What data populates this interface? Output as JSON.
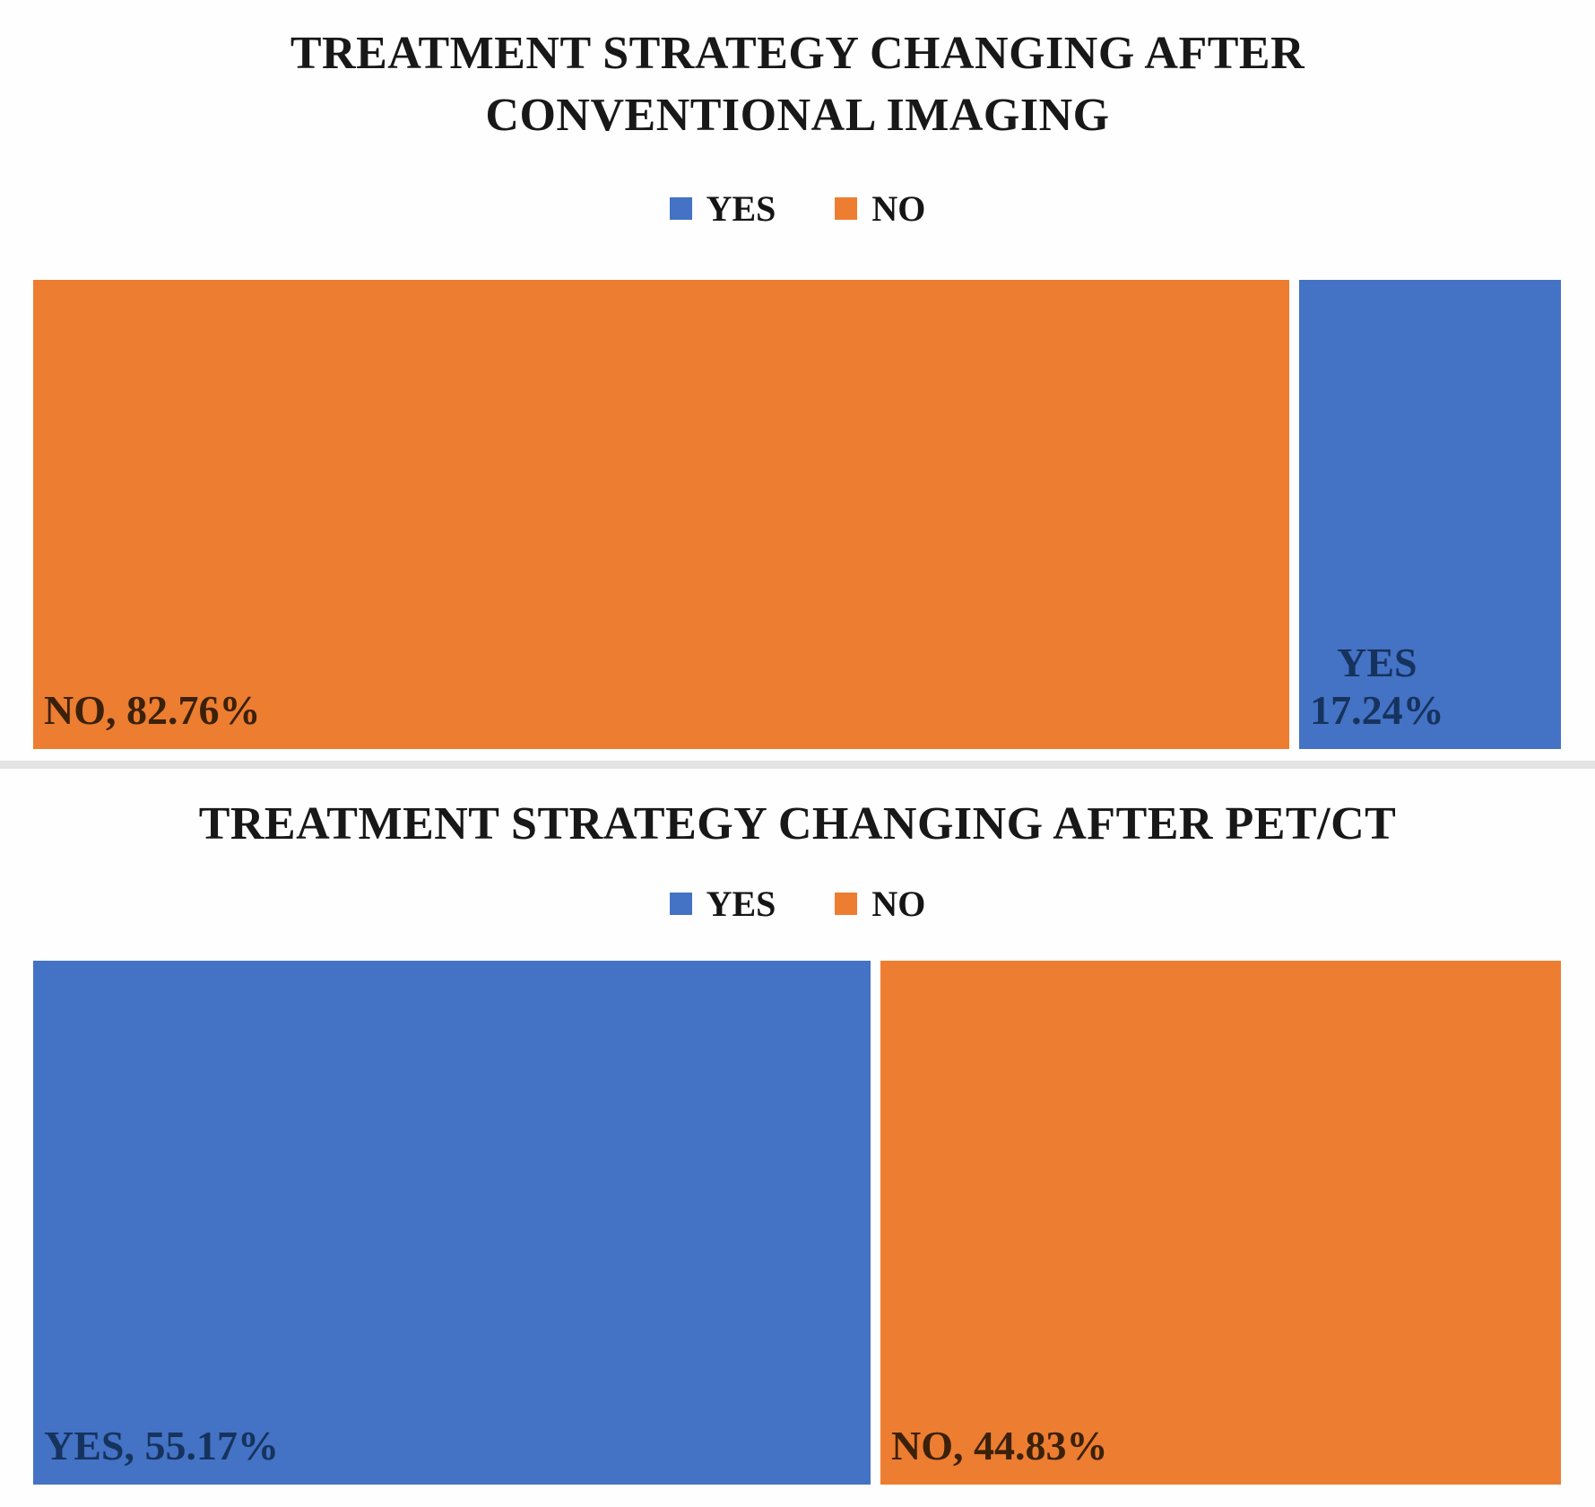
{
  "figure": {
    "background_color": "#fefefe",
    "divider_color": "#e4e4e4"
  },
  "chart_data": [
    {
      "type": "bar",
      "subtype": "stacked-100-horizontal",
      "title": "TREATMENT STRATEGY CHANGING AFTER CONVENTIONAL IMAGING",
      "legend_position": "top",
      "axes": "none",
      "unit": "percent",
      "legend_items": [
        {
          "label": "YES",
          "color": "#4472C4"
        },
        {
          "label": "NO",
          "color": "#ED7D31"
        }
      ],
      "series": [
        {
          "name": "NO",
          "value": 82.76,
          "color": "#ED7D31",
          "label_lines": [
            "NO, 82.76%"
          ],
          "label_color": "#3B2109"
        },
        {
          "name": "YES",
          "value": 17.24,
          "color": "#4472C4",
          "label_lines": [
            "YES",
            "17.24%"
          ],
          "label_color": "#16335E"
        }
      ]
    },
    {
      "type": "bar",
      "subtype": "stacked-100-horizontal",
      "title": "TREATMENT STRATEGY CHANGING AFTER PET/CT",
      "legend_position": "top",
      "axes": "none",
      "unit": "percent",
      "legend_items": [
        {
          "label": "YES",
          "color": "#4472C4"
        },
        {
          "label": "NO",
          "color": "#ED7D31"
        }
      ],
      "series": [
        {
          "name": "YES",
          "value": 55.17,
          "color": "#4472C4",
          "label_lines": [
            "YES, 55.17%"
          ],
          "label_color": "#16335E"
        },
        {
          "name": "NO",
          "value": 44.83,
          "color": "#ED7D31",
          "label_lines": [
            "NO, 44.83%"
          ],
          "label_color": "#3B2109"
        }
      ]
    }
  ]
}
